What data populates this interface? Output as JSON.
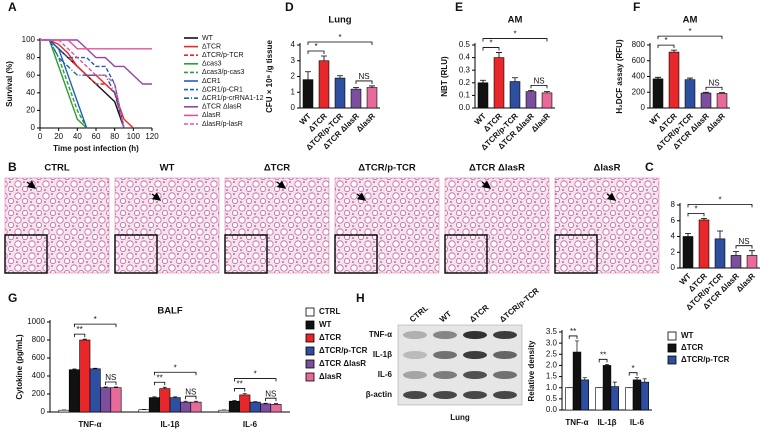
{
  "chart_data": [
    {
      "type": "line",
      "panel": "A",
      "xlabel": "Time post infection (h)",
      "ylabel": "Survival (%)",
      "x": [
        0,
        10,
        20,
        30,
        40,
        50,
        60,
        70,
        80,
        90,
        100,
        110,
        120
      ],
      "xlim": [
        0,
        120
      ],
      "xticks": [
        0,
        20,
        40,
        60,
        80,
        100,
        120
      ],
      "ylim": [
        0,
        100
      ],
      "yticks": [
        0,
        20,
        40,
        60,
        80,
        100
      ],
      "series": [
        {
          "name": "WT",
          "color": "#111111",
          "dash": "solid",
          "values": [
            100,
            100,
            90,
            80,
            70,
            60,
            50,
            40,
            30,
            0,
            null,
            null,
            null
          ]
        },
        {
          "name": "ΔTCR",
          "color": "#e8272a",
          "dash": "solid",
          "values": [
            100,
            100,
            95,
            85,
            70,
            60,
            60,
            50,
            40,
            10,
            0,
            null,
            null
          ]
        },
        {
          "name": "ΔTCR/p-TCR",
          "color": "#e8272a",
          "dash": "dashed",
          "values": [
            100,
            100,
            90,
            80,
            70,
            60,
            50,
            50,
            40,
            0,
            null,
            null,
            null
          ]
        },
        {
          "name": "Δcas3",
          "color": "#2ca02c",
          "dash": "solid",
          "values": [
            100,
            100,
            70,
            40,
            10,
            0,
            null,
            null,
            null,
            null,
            null,
            null,
            null
          ]
        },
        {
          "name": "Δcas3/p-cas3",
          "color": "#2ca02c",
          "dash": "dashed",
          "values": [
            100,
            100,
            80,
            50,
            20,
            0,
            null,
            null,
            null,
            null,
            null,
            null,
            null
          ]
        },
        {
          "name": "ΔCR1",
          "color": "#1f5fbf",
          "dash": "solid",
          "values": [
            100,
            100,
            90,
            60,
            30,
            0,
            null,
            null,
            null,
            null,
            null,
            null,
            null
          ]
        },
        {
          "name": "ΔCR1/p-CR1",
          "color": "#1f5fbf",
          "dash": "dashed",
          "values": [
            100,
            100,
            90,
            80,
            80,
            80,
            70,
            70,
            50,
            0,
            null,
            null,
            null
          ]
        },
        {
          "name": "ΔCR1/p-crRNA1-12",
          "color": "#1f5fbf",
          "dash": "dashdot",
          "values": [
            100,
            100,
            80,
            70,
            60,
            60,
            60,
            60,
            40,
            0,
            null,
            null,
            null
          ]
        },
        {
          "name": "ΔTCR ΔlasR",
          "color": "#9b3fb0",
          "dash": "solid",
          "values": [
            100,
            100,
            100,
            100,
            100,
            90,
            80,
            80,
            70,
            70,
            60,
            50,
            50
          ]
        },
        {
          "name": "ΔlasR",
          "color": "#e0559a",
          "dash": "solid",
          "values": [
            100,
            100,
            100,
            100,
            90,
            90,
            90,
            90,
            90,
            90,
            90,
            90,
            90
          ]
        },
        {
          "name": "ΔlasR/p-lasR",
          "color": "#e0559a",
          "dash": "dashed",
          "values": [
            100,
            100,
            100,
            90,
            80,
            70,
            60,
            60,
            50,
            0,
            null,
            null,
            null
          ]
        }
      ]
    },
    {
      "type": "bar",
      "panel": "D",
      "title": "Lung",
      "ylabel": "CFU × 10⁶ /g tissue",
      "categories": [
        "WT",
        "ΔTCR",
        "ΔTCR/p-TCR",
        "ΔTCR ΔlasR",
        "ΔlasR"
      ],
      "values": [
        1.8,
        3.0,
        1.9,
        1.2,
        1.3
      ],
      "errors": [
        0.5,
        0.3,
        0.15,
        0.1,
        0.1
      ],
      "colors": [
        "#111111",
        "#e8272a",
        "#2e4fa0",
        "#7b4f9e",
        "#e66a9a"
      ],
      "ylim": [
        0,
        4
      ],
      "yticks": [
        0,
        1,
        2,
        3,
        4
      ],
      "annotations": [
        "*",
        "*",
        "NS"
      ]
    },
    {
      "type": "bar",
      "panel": "E",
      "title": "AM",
      "ylabel": "NBT (RLU)",
      "categories": [
        "WT",
        "ΔTCR",
        "ΔTCR/p-TCR",
        "ΔTCR ΔlasR",
        "ΔlasR"
      ],
      "values": [
        0.2,
        0.4,
        0.21,
        0.13,
        0.12
      ],
      "errors": [
        0.02,
        0.04,
        0.03,
        0.01,
        0.01
      ],
      "colors": [
        "#111111",
        "#e8272a",
        "#2e4fa0",
        "#7b4f9e",
        "#e66a9a"
      ],
      "ylim": [
        0,
        0.5
      ],
      "yticks": [
        {
          "value": 0,
          "label": "0.0"
        },
        0.1,
        0.2,
        0.3,
        0.4,
        0.5
      ],
      "annotations": [
        "*",
        "*",
        "NS"
      ]
    },
    {
      "type": "bar",
      "panel": "F",
      "title": "AM",
      "ylabel": "H₂DCF assay (RFU)",
      "categories": [
        "WT",
        "ΔTCR",
        "ΔTCR/p-TCR",
        "ΔTCR ΔlasR",
        "ΔlasR"
      ],
      "values": [
        370,
        710,
        360,
        190,
        185
      ],
      "errors": [
        20,
        25,
        20,
        10,
        10
      ],
      "colors": [
        "#111111",
        "#e8272a",
        "#2e4fa0",
        "#7b4f9e",
        "#e66a9a"
      ],
      "ylim": [
        0,
        800
      ],
      "yticks": [
        0,
        200,
        400,
        600,
        800
      ],
      "annotations": [
        "*",
        "*",
        "NS"
      ]
    },
    {
      "type": "bar",
      "panel": "C",
      "ylabel": "Inflammation index",
      "categories": [
        "WT",
        "ΔTCR",
        "ΔTCR/p-TCR",
        "ΔTCR ΔlasR",
        "ΔlasR"
      ],
      "values": [
        4.0,
        6.1,
        3.7,
        1.6,
        1.6
      ],
      "errors": [
        0.4,
        0.2,
        1.0,
        0.5,
        0.6
      ],
      "colors": [
        "#111111",
        "#e8272a",
        "#2e4fa0",
        "#7b4f9e",
        "#e66a9a"
      ],
      "ylim": [
        0,
        8
      ],
      "yticks": [
        0,
        2,
        4,
        6,
        8
      ],
      "annotations": [
        "*",
        "*",
        "NS"
      ]
    },
    {
      "type": "grouped_bar",
      "panel": "G",
      "title": "BALF",
      "ylabel": "Cytokine (pg/mL)",
      "categories": [
        "TNF-α",
        "IL-1β",
        "IL-6"
      ],
      "series": [
        {
          "name": "CTRL",
          "color": "#ffffff",
          "values": [
            20,
            25,
            20
          ],
          "errors": [
            3,
            3,
            3
          ]
        },
        {
          "name": "WT",
          "color": "#111111",
          "values": [
            470,
            160,
            120
          ],
          "errors": [
            8,
            8,
            6
          ]
        },
        {
          "name": "ΔTCR",
          "color": "#e8272a",
          "values": [
            800,
            260,
            190
          ],
          "errors": [
            10,
            15,
            15
          ]
        },
        {
          "name": "ΔTCR/p-TCR",
          "color": "#2e4fa0",
          "values": [
            480,
            160,
            110
          ],
          "errors": [
            6,
            8,
            6
          ]
        },
        {
          "name": "ΔTCR ΔlasR",
          "color": "#7b4f9e",
          "values": [
            270,
            110,
            90
          ],
          "errors": [
            8,
            10,
            8
          ]
        },
        {
          "name": "ΔlasR",
          "color": "#e66a9a",
          "values": [
            270,
            110,
            85
          ],
          "errors": [
            8,
            10,
            8
          ]
        }
      ],
      "ylim": [
        0,
        1000
      ],
      "yticks": [
        0,
        200,
        400,
        600,
        800,
        1000
      ],
      "annotations": [
        "**",
        "*",
        "NS",
        "**",
        "*",
        "NS",
        "**",
        "*",
        "NS"
      ]
    },
    {
      "type": "grouped_bar",
      "ylabel": "Relative density",
      "categories": [
        "TNF-α",
        "IL-1β",
        "IL-6"
      ],
      "series": [
        {
          "name": "WT",
          "color": "#ffffff",
          "values": [
            1,
            1,
            1
          ],
          "errors": [
            0,
            0,
            0
          ]
        },
        {
          "name": "ΔTCR",
          "color": "#111111",
          "values": [
            2.6,
            2.0,
            1.35
          ],
          "errors": [
            0.5,
            0.05,
            0.1
          ]
        },
        {
          "name": "ΔTCR/p-TCR",
          "color": "#2e4fa0",
          "values": [
            1.35,
            1.05,
            1.25
          ],
          "errors": [
            0.1,
            0.2,
            0.15
          ]
        }
      ],
      "ylim": [
        0,
        3.5
      ],
      "yticks": [
        {
          "value": 0,
          "label": "0.0"
        },
        0.5,
        {
          "value": 1,
          "label": "1.0"
        },
        1.5,
        {
          "value": 2,
          "label": "2.0"
        },
        2.5,
        {
          "value": 3,
          "label": "3.0"
        },
        3.5
      ],
      "annotations": [
        "**",
        "**",
        "*"
      ]
    }
  ],
  "histology": {
    "panel": "B",
    "labels": [
      "CTRL",
      "WT",
      "ΔTCR",
      "ΔTCR/p-TCR",
      "ΔTCR ΔlasR",
      "ΔlasR"
    ]
  },
  "blot": {
    "panel": "H",
    "lanes": [
      "CTRL",
      "WT",
      "ΔTCR",
      "ΔTCR/p-TCR"
    ],
    "rows": [
      "TNF-α",
      "IL-1β",
      "IL-6",
      "β-actin"
    ],
    "caption": "Lung"
  }
}
